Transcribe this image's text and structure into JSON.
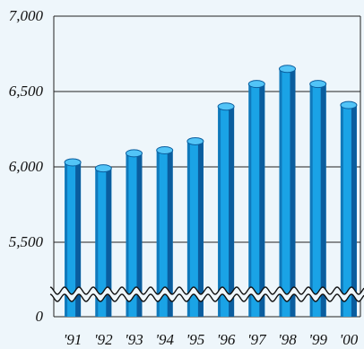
{
  "chart_data": {
    "type": "bar",
    "title": "",
    "xlabel": "",
    "ylabel": "",
    "categories": [
      "'91",
      "'92",
      "'93",
      "'94",
      "'95",
      "'96",
      "'97",
      "'98",
      "'99",
      "'00"
    ],
    "values": [
      6030,
      5990,
      6090,
      6110,
      6170,
      6400,
      6550,
      6650,
      6550,
      6410
    ],
    "ylim": [
      5000,
      7000
    ],
    "y_ticks": [
      "7,000",
      "6,500",
      "6,000",
      "5,500",
      "0"
    ],
    "y_tick_values": [
      7000,
      6500,
      6000,
      5500,
      5000
    ],
    "axis_break": true,
    "grid": "horizontal",
    "bar_style": "3d-cylinder",
    "colors": {
      "bar_front": "#1aa3e6",
      "bar_shade": "#0a5d9e",
      "bar_top": "#52c4f7",
      "plot_bg": "#eef6fb",
      "grid": "#222222"
    }
  }
}
